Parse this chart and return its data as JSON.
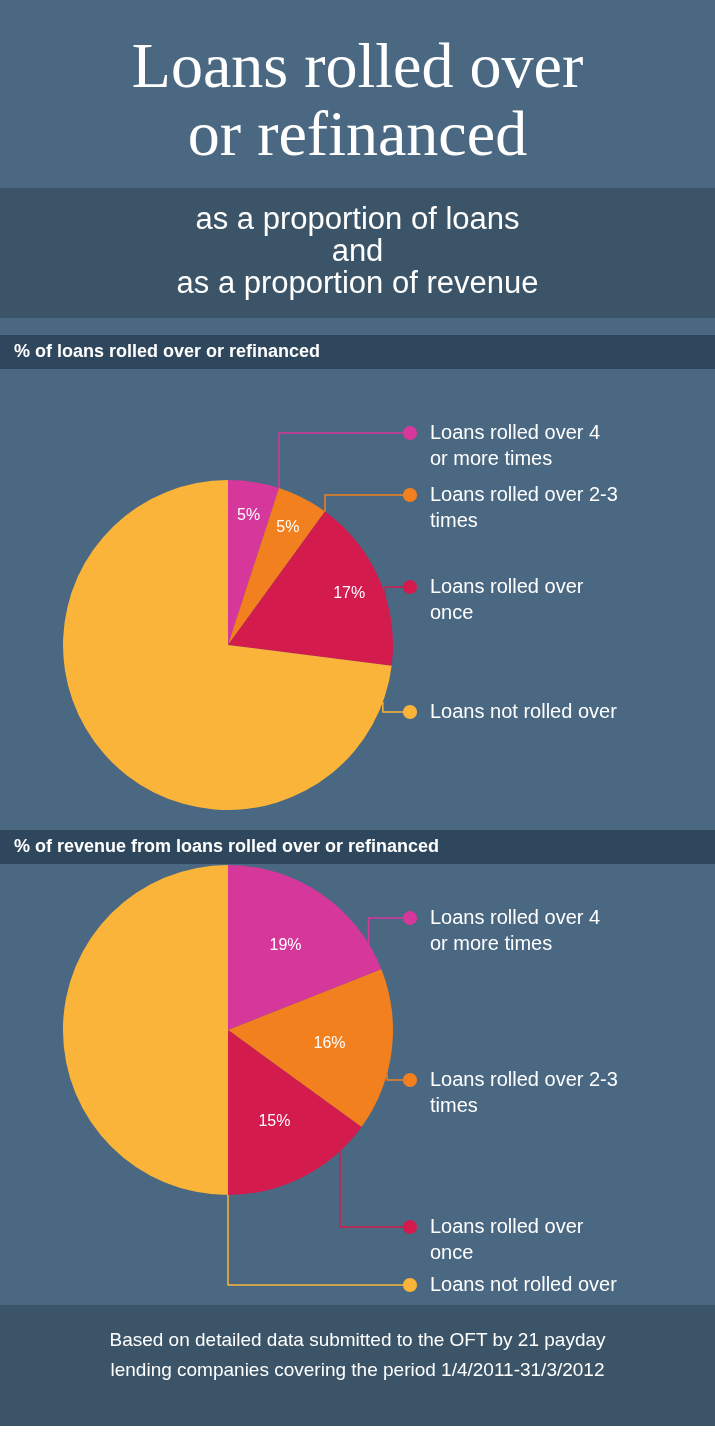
{
  "chart_data": [
    {
      "type": "pie",
      "title": "Loans rolled over\nor refinanced",
      "subtitle": "as a proportion of loans\nand\nas a proportion of revenue",
      "annotations": [
        "% of loans rolled over or refinanced"
      ],
      "categories": [
        "Loans rolled over 4 or more times",
        "Loans rolled over 2-3 times",
        "Loans rolled over once",
        "Loans not rolled over"
      ],
      "values": [
        5,
        5,
        17,
        73
      ],
      "value_labels": [
        "5%",
        "5%",
        "17%",
        null
      ],
      "colors": [
        "#d5379b",
        "#f2801f",
        "#d31b4e",
        "#fbb43a"
      ],
      "legend": "right"
    },
    {
      "type": "pie",
      "title": "% of revenue from loans rolled over or refinanced",
      "annotations": [
        "Based on detailed data submitted to the OFT by 21 payday lending companies covering the period 1/4/2011-31/3/2012"
      ],
      "categories": [
        "Loans rolled over 4 or more times",
        "Loans rolled over 2-3 times",
        "Loans rolled over once",
        "Loans not rolled over"
      ],
      "values": [
        19,
        16,
        15,
        50
      ],
      "value_labels": [
        "19%",
        "16%",
        "15%",
        null
      ],
      "colors": [
        "#d5379b",
        "#f2801f",
        "#d31b4e",
        "#fbb43a"
      ],
      "legend": "right"
    }
  ]
}
